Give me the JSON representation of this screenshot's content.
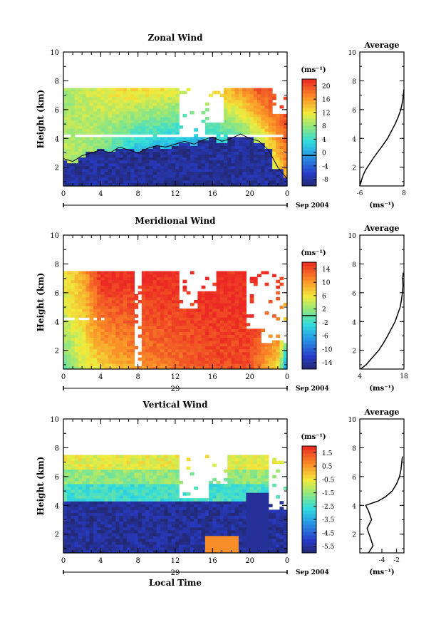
{
  "chart_data": [
    {
      "type": "heatmap",
      "title": "Zonal Wind",
      "ylabel": "Height (km)",
      "ylim": [
        0.7,
        10
      ],
      "xlim": [
        0,
        24
      ],
      "x_ticks": [
        "0",
        "4",
        "8",
        "12",
        "16",
        "20",
        "0"
      ],
      "y_ticks": [
        "2",
        "4",
        "6",
        "8",
        "10"
      ],
      "date_label": "Sep 2004",
      "colorbar": {
        "unit_label": "(ms⁻¹)",
        "min": -8,
        "max": 20,
        "ticks": [
          "20",
          "16",
          "12",
          "8",
          "4",
          "0",
          "-4",
          "-8"
        ],
        "marker_value": 0
      },
      "top_height_km": 7.5,
      "surface_values": [
        {
          "hour": 0,
          "v": 10
        },
        {
          "hour": 1,
          "v": 9
        },
        {
          "hour": 2,
          "v": 8
        },
        {
          "hour": 3,
          "v": 6
        },
        {
          "hour": 4,
          "v": 4
        },
        {
          "hour": 6,
          "v": -2
        },
        {
          "hour": 8,
          "v": -6
        },
        {
          "hour": 12,
          "v": -8
        },
        {
          "hour": 16,
          "v": -8
        },
        {
          "hour": 20,
          "v": -6
        },
        {
          "hour": 22,
          "v": 4
        },
        {
          "hour": 24,
          "v": 14
        }
      ],
      "top_values": [
        {
          "hour": 0,
          "v": 8
        },
        {
          "hour": 3,
          "v": 10
        },
        {
          "hour": 6,
          "v": 12
        },
        {
          "hour": 10,
          "v": 12
        },
        {
          "hour": 14,
          "v": 10
        },
        {
          "hour": 18,
          "v": 14
        },
        {
          "hour": 21,
          "v": 18
        },
        {
          "hour": 24,
          "v": 20
        }
      ],
      "zero_contour_km": [
        2.6,
        2.4,
        2.8,
        3.0,
        3.2,
        3.0,
        3.4,
        3.2,
        3.0,
        3.3,
        3.5,
        3.4,
        3.6,
        3.8,
        3.6,
        3.9,
        4.1,
        3.8,
        4.0,
        4.3,
        4.0,
        3.8,
        3.2,
        2.0,
        1.2
      ],
      "data_gaps": [
        {
          "x0": 12.3,
          "x1": 15.2,
          "y0": 4.3,
          "y1": 7.5
        },
        {
          "x0": 15.2,
          "x1": 17.0,
          "y0": 5.2,
          "y1": 7.5
        },
        {
          "x0": 0,
          "x1": 24,
          "y0": 4.1,
          "y1": 4.3
        },
        {
          "x0": 22.3,
          "x1": 24,
          "y0": 5.8,
          "y1": 10
        }
      ],
      "average_profile": {
        "title": "Average",
        "xlabel": "(ms⁻¹)",
        "xlim": [
          -6,
          8
        ],
        "x_ticks": [
          "-6",
          "8"
        ],
        "y_ticks": [
          "2",
          "4",
          "6",
          "8",
          "10"
        ],
        "x": [
          -6,
          -5.6,
          -5.0,
          -4.2,
          -3.0,
          -1.8,
          -0.5,
          1.2,
          2.8,
          4.0,
          5.2,
          6.2,
          7.0,
          7.6,
          8.0
        ],
        "y": [
          0.7,
          1.0,
          1.4,
          1.8,
          2.2,
          2.6,
          3.0,
          3.5,
          4.0,
          4.5,
          5.0,
          5.5,
          6.0,
          6.6,
          7.4
        ]
      }
    },
    {
      "type": "heatmap",
      "title": "Meridional Wind",
      "ylabel": "Height (km)",
      "ylim": [
        0.7,
        10
      ],
      "xlim": [
        0,
        24
      ],
      "x_ticks": [
        "0",
        "4",
        "8",
        "12",
        "16",
        "20",
        "0"
      ],
      "y_ticks": [
        "2",
        "4",
        "6",
        "8",
        "10"
      ],
      "day_label": "29",
      "date_label": "Sep 2004",
      "colorbar": {
        "unit_label": "(ms⁻¹)",
        "min": -16,
        "max": 16,
        "ticks": [
          "14",
          "10",
          "6",
          "2",
          "-2",
          "-6",
          "-10",
          "-14"
        ],
        "marker_value": 0
      },
      "top_height_km": 7.5,
      "surface_values": [
        {
          "hour": 0,
          "v": 0
        },
        {
          "hour": 2,
          "v": 4
        },
        {
          "hour": 4,
          "v": 6
        },
        {
          "hour": 8,
          "v": 10
        },
        {
          "hour": 12,
          "v": 12
        },
        {
          "hour": 16,
          "v": 14
        },
        {
          "hour": 20,
          "v": 14
        },
        {
          "hour": 23,
          "v": 6
        },
        {
          "hour": 24,
          "v": -10
        }
      ],
      "top_values": [
        {
          "hour": 0,
          "v": 6
        },
        {
          "hour": 2,
          "v": 9
        },
        {
          "hour": 4,
          "v": 16
        },
        {
          "hour": 12,
          "v": 16
        },
        {
          "hour": 20,
          "v": 16
        },
        {
          "hour": 24,
          "v": 16
        }
      ],
      "data_gaps": [
        {
          "x0": 7.6,
          "x1": 8.3,
          "y0": 0.9,
          "y1": 7.5
        },
        {
          "x0": 12.3,
          "x1": 14.6,
          "y0": 5.0,
          "y1": 7.5
        },
        {
          "x0": 14.6,
          "x1": 16.2,
          "y0": 6.2,
          "y1": 7.5
        },
        {
          "x0": 19.8,
          "x1": 21.2,
          "y0": 3.5,
          "y1": 7.5
        },
        {
          "x0": 21.2,
          "x1": 24,
          "y0": 2.6,
          "y1": 10
        },
        {
          "x0": 0,
          "x1": 4.5,
          "y0": 4.1,
          "y1": 4.3
        }
      ],
      "average_profile": {
        "title": "Average",
        "xlabel": "(ms⁻¹)",
        "xlim": [
          4,
          18
        ],
        "x_ticks": [
          "4",
          "18"
        ],
        "y_ticks": [
          "2",
          "4",
          "6",
          "8",
          "10"
        ],
        "x": [
          4.2,
          6.0,
          8.0,
          10.0,
          11.5,
          12.8,
          14.0,
          15.2,
          16.0,
          16.8,
          17.2,
          17.5,
          17.7,
          17.6,
          17.8
        ],
        "y": [
          0.7,
          1.0,
          1.5,
          2.0,
          2.5,
          3.0,
          3.5,
          4.0,
          4.5,
          5.0,
          5.5,
          6.0,
          6.5,
          7.0,
          7.4
        ]
      }
    },
    {
      "type": "heatmap",
      "title": "Vertical Wind",
      "ylabel": "Height (km)",
      "xlabel": "Local Time",
      "ylim": [
        0.7,
        10
      ],
      "xlim": [
        0,
        24
      ],
      "x_ticks": [
        "0",
        "4",
        "8",
        "12",
        "16",
        "20",
        "0"
      ],
      "y_ticks": [
        "2",
        "4",
        "6",
        "8",
        "10"
      ],
      "day_label": "29",
      "date_label": "Sep 2004",
      "colorbar": {
        "unit_label": "(ms⁻¹)",
        "min": -7,
        "max": 2,
        "ticks": [
          "1.5",
          "0.5",
          "-0.5",
          "-1.5",
          "-2.5",
          "-3.5",
          "-4.5",
          "-5.5"
        ]
      },
      "top_height_km": 7.5,
      "levels": [
        {
          "y0": 0.7,
          "y1": 4.4,
          "v": -6.5
        },
        {
          "y0": 4.4,
          "y1": 5.5,
          "v": -3.0
        },
        {
          "y0": 5.5,
          "y1": 6.5,
          "v": -2.0
        },
        {
          "y0": 6.5,
          "y1": 7.5,
          "v": -1.0
        }
      ],
      "data_gaps": [
        {
          "x0": 12.3,
          "x1": 15.5,
          "y0": 4.5,
          "y1": 7.5
        },
        {
          "x0": 15.5,
          "x1": 17.5,
          "y0": 5.5,
          "y1": 7.5
        },
        {
          "x0": 22.0,
          "x1": 24,
          "y0": 3.8,
          "y1": 10
        }
      ],
      "average_profile": {
        "title": "Average",
        "xlabel": "(ms⁻¹)",
        "xlim": [
          -7,
          -1
        ],
        "x_ticks": [
          "-4",
          "-2"
        ],
        "y_ticks": [
          "2",
          "4",
          "6",
          "8",
          "10"
        ],
        "x": [
          -5.8,
          -5.2,
          -5.6,
          -6.0,
          -5.4,
          -5.8,
          -6.2,
          -4.5,
          -3.5,
          -2.6,
          -2.0,
          -1.6,
          -1.4,
          -1.3,
          -1.2
        ],
        "y": [
          0.7,
          1.2,
          1.8,
          2.4,
          3.0,
          3.6,
          4.0,
          4.3,
          4.6,
          5.0,
          5.5,
          6.0,
          6.5,
          7.0,
          7.4
        ]
      }
    }
  ]
}
